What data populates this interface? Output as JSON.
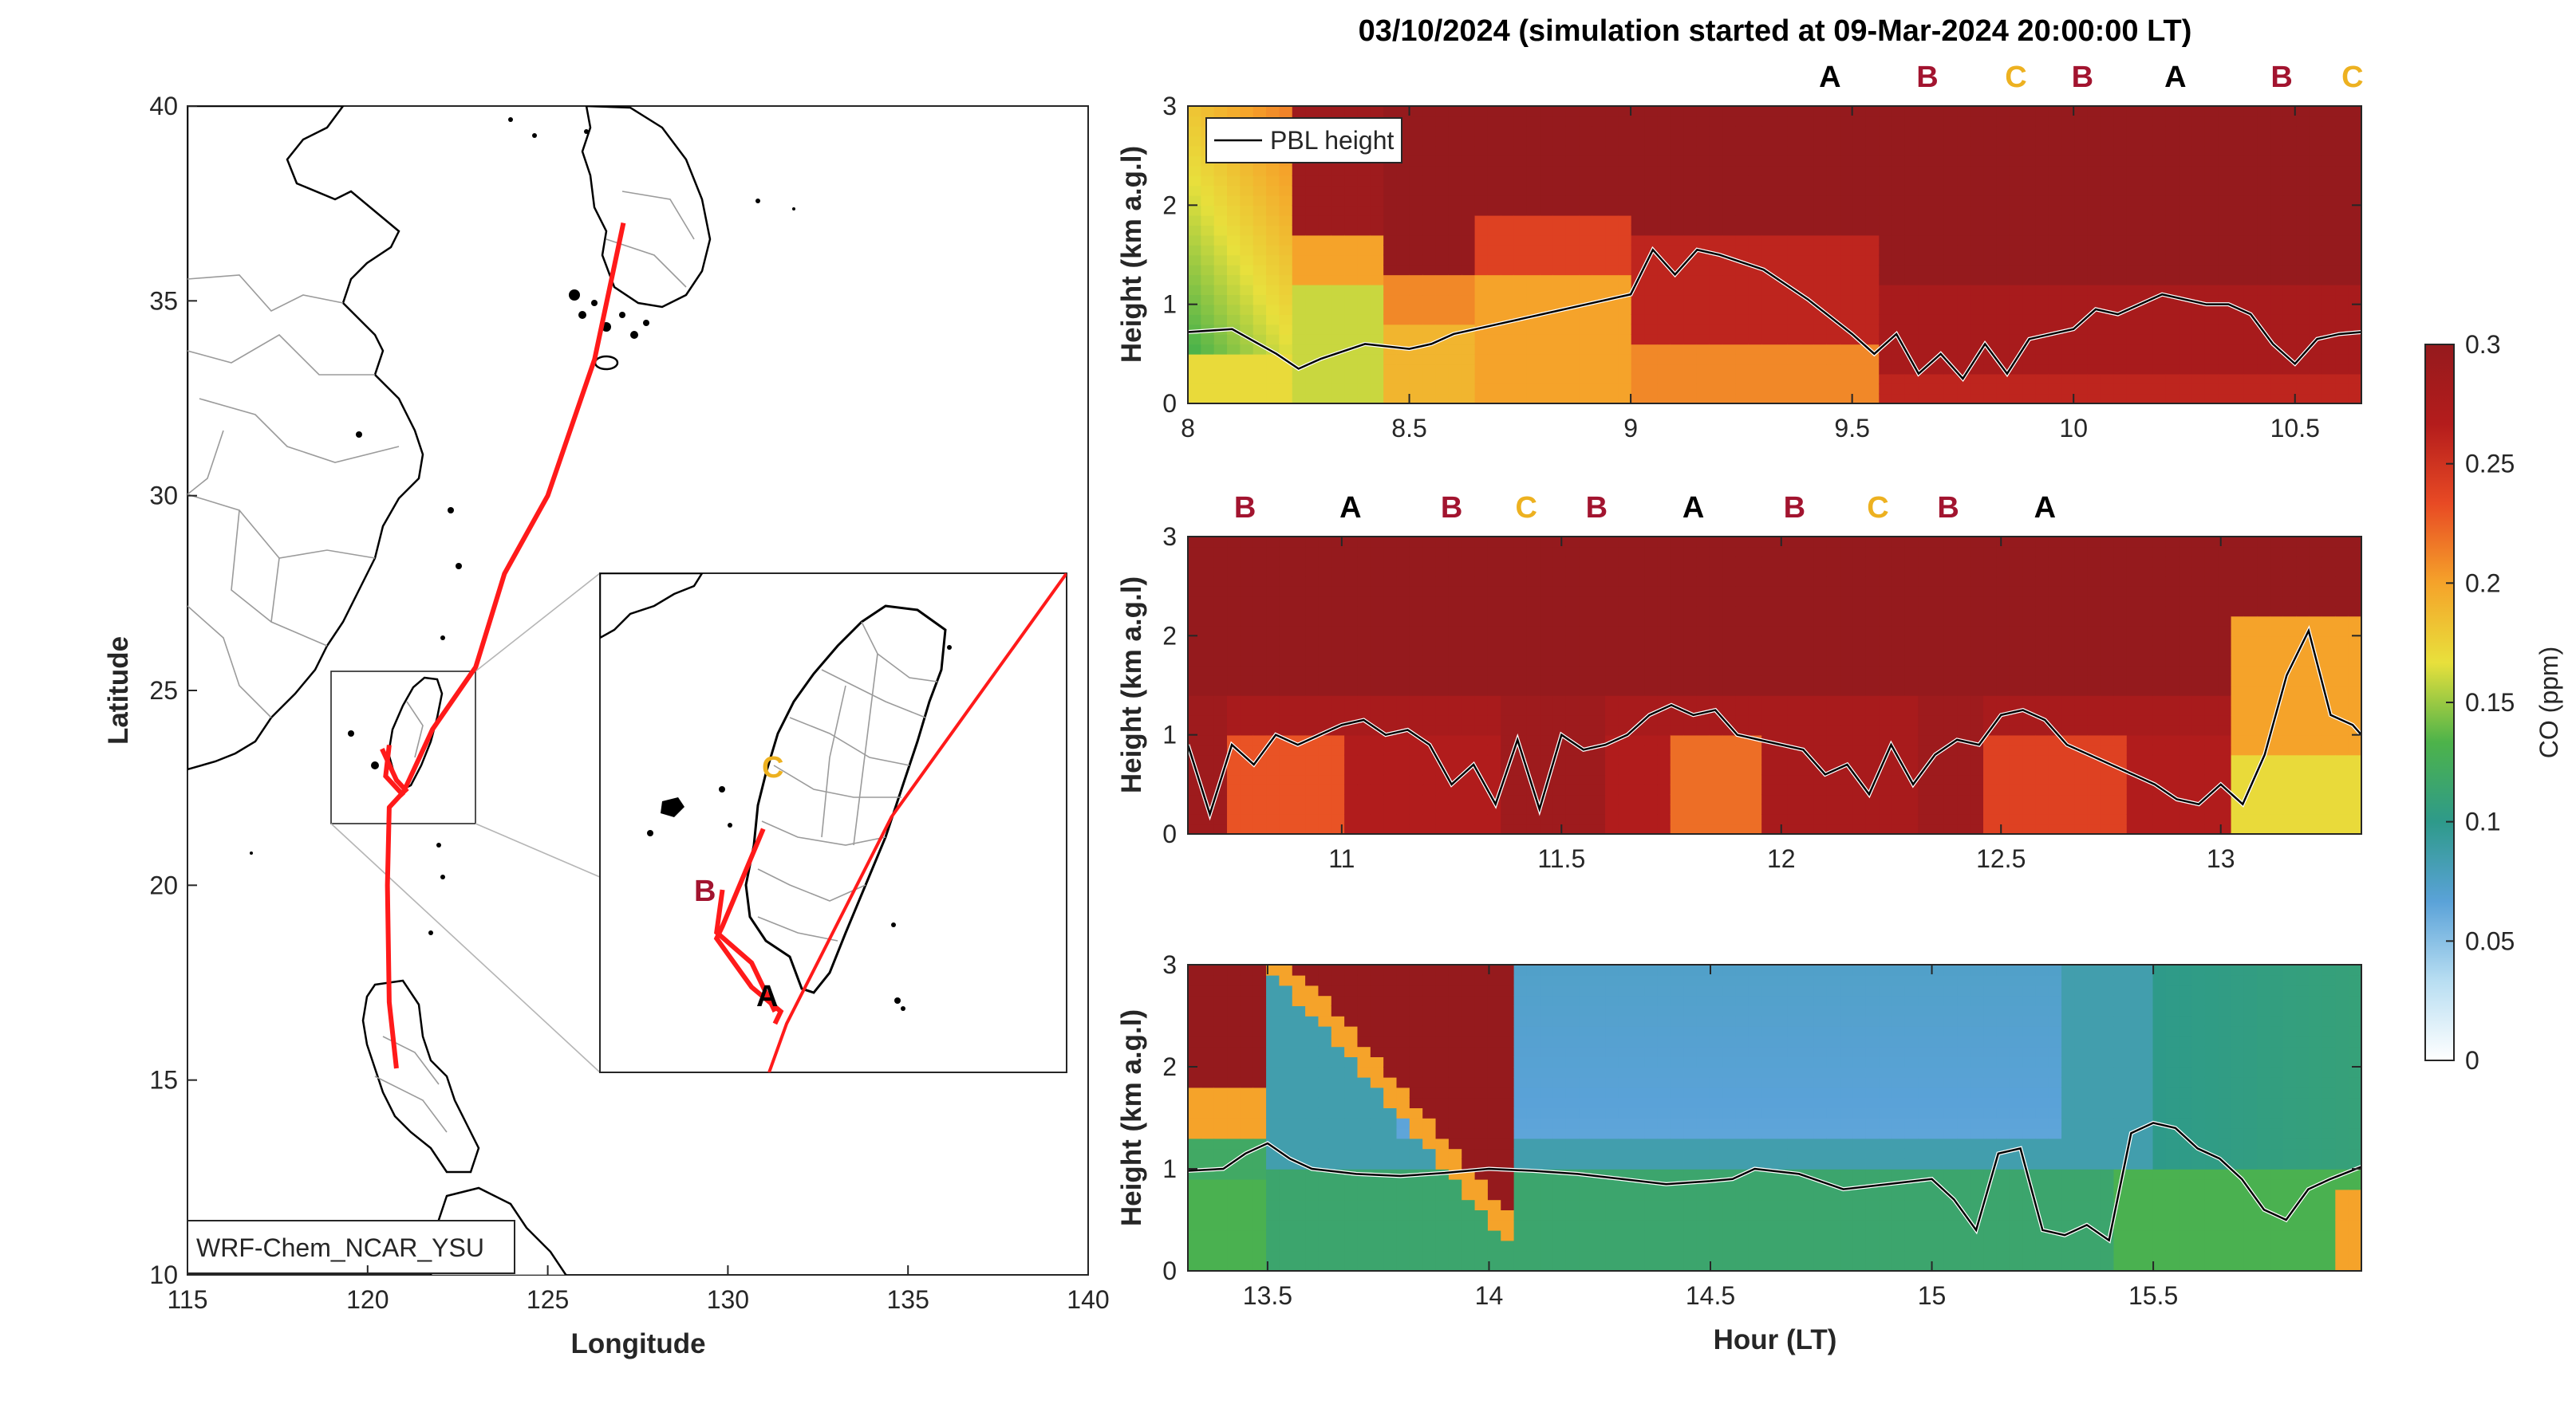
{
  "figure": {
    "title": "03/10/2024 (simulation started at 09-Mar-2024 20:00:00 LT)",
    "shared_xlabel": "Hour (LT)"
  },
  "colors": {
    "route": "#ff1a1a",
    "marker_A": "#000000",
    "marker_B": "#a2142f",
    "marker_C": "#edb120",
    "pbl_line": "#000000"
  },
  "map": {
    "model_label": "WRF-Chem_NCAR_YSU",
    "xlabel": "Longitude",
    "ylabel": "Latitude",
    "xlim": [
      115,
      140
    ],
    "ylim": [
      10,
      40
    ],
    "xticks": [
      115,
      120,
      125,
      130,
      135,
      140
    ],
    "yticks": [
      10,
      15,
      20,
      25,
      30,
      35,
      40
    ],
    "inset_box_lon": [
      119.3,
      123.3
    ],
    "inset_box_lat": [
      21.5,
      25.6
    ],
    "route_lon_lat": [
      [
        127.1,
        37.0
      ],
      [
        126.3,
        33.5
      ],
      [
        125.0,
        30.0
      ],
      [
        123.8,
        28.0
      ],
      [
        123.0,
        25.6
      ],
      [
        121.8,
        24.0
      ],
      [
        121.0,
        22.4
      ],
      [
        120.6,
        22.0
      ],
      [
        120.55,
        20.0
      ],
      [
        120.6,
        17.0
      ],
      [
        120.8,
        15.3
      ]
    ],
    "inset_letters": [
      {
        "text": "C",
        "color": "marker_C"
      },
      {
        "text": "B",
        "color": "marker_B"
      },
      {
        "text": "A",
        "color": "marker_A"
      }
    ]
  },
  "colorbar": {
    "label": "CO (ppm)",
    "range": [
      0,
      0.3
    ],
    "ticks": [
      "0",
      "0.05",
      "0.1",
      "0.15",
      "0.2",
      "0.25",
      "0.3"
    ],
    "colors": [
      "#ffffff",
      "#b8def2",
      "#5aa2d8",
      "#2e9a8a",
      "#4db34a",
      "#e8e03c",
      "#f5a32a",
      "#e84a24",
      "#b41c1c",
      "#951a1d"
    ]
  },
  "chart_data": [
    {
      "type": "heatmap",
      "xlabel": "",
      "ylabel": "Height (km a.g.l)",
      "xlim": [
        8,
        10.65
      ],
      "ylim": [
        0,
        3
      ],
      "xticks": [
        "8",
        "8.5",
        "9",
        "9.5",
        "10",
        "10.5"
      ],
      "yticks": [
        "0",
        "1",
        "2",
        "3"
      ],
      "legend": {
        "entry": "PBL height",
        "position": "top-left"
      },
      "markers": [
        {
          "label": "A",
          "x": 9.45
        },
        {
          "label": "B",
          "x": 9.67
        },
        {
          "label": "C",
          "x": 9.87
        },
        {
          "label": "B",
          "x": 10.02
        },
        {
          "label": "A",
          "x": 10.23
        },
        {
          "label": "B",
          "x": 10.47
        },
        {
          "label": "C",
          "x": 10.63
        }
      ],
      "pbl_height": {
        "x": [
          8.0,
          8.1,
          8.2,
          8.25,
          8.3,
          8.4,
          8.5,
          8.55,
          8.6,
          8.7,
          8.8,
          8.9,
          9.0,
          9.05,
          9.1,
          9.15,
          9.2,
          9.3,
          9.4,
          9.5,
          9.55,
          9.6,
          9.65,
          9.7,
          9.75,
          9.8,
          9.85,
          9.9,
          9.95,
          10.0,
          10.05,
          10.1,
          10.2,
          10.25,
          10.3,
          10.35,
          10.4,
          10.45,
          10.5,
          10.55,
          10.6,
          10.65
        ],
        "y": [
          0.72,
          0.75,
          0.5,
          0.35,
          0.45,
          0.6,
          0.55,
          0.6,
          0.7,
          0.8,
          0.9,
          1.0,
          1.1,
          1.55,
          1.3,
          1.55,
          1.5,
          1.35,
          1.05,
          0.7,
          0.5,
          0.7,
          0.3,
          0.5,
          0.25,
          0.6,
          0.3,
          0.65,
          0.7,
          0.75,
          0.95,
          0.9,
          1.1,
          1.05,
          1.0,
          1.0,
          0.9,
          0.6,
          0.4,
          0.65,
          0.7,
          0.72
        ]
      }
    },
    {
      "type": "heatmap",
      "xlabel": "",
      "ylabel": "Height (km a.g.l)",
      "xlim": [
        10.65,
        13.32
      ],
      "ylim": [
        0,
        3
      ],
      "xticks": [
        "11",
        "11.5",
        "12",
        "12.5",
        "13"
      ],
      "yticks": [
        "0",
        "1",
        "2",
        "3"
      ],
      "markers": [
        {
          "label": "B",
          "x": 10.78
        },
        {
          "label": "A",
          "x": 11.02
        },
        {
          "label": "B",
          "x": 11.25
        },
        {
          "label": "C",
          "x": 11.42
        },
        {
          "label": "B",
          "x": 11.58
        },
        {
          "label": "A",
          "x": 11.8
        },
        {
          "label": "B",
          "x": 12.03
        },
        {
          "label": "C",
          "x": 12.22
        },
        {
          "label": "B",
          "x": 12.38
        },
        {
          "label": "A",
          "x": 12.6
        }
      ],
      "pbl_height": {
        "x": [
          10.65,
          10.7,
          10.75,
          10.8,
          10.85,
          10.9,
          11.0,
          11.05,
          11.1,
          11.15,
          11.2,
          11.25,
          11.3,
          11.35,
          11.4,
          11.45,
          11.5,
          11.55,
          11.6,
          11.65,
          11.7,
          11.75,
          11.8,
          11.85,
          11.9,
          11.95,
          12.0,
          12.05,
          12.1,
          12.15,
          12.2,
          12.25,
          12.3,
          12.35,
          12.4,
          12.45,
          12.5,
          12.55,
          12.6,
          12.65,
          12.7,
          12.75,
          12.8,
          12.85,
          12.9,
          12.95,
          13.0,
          13.05,
          13.1,
          13.15,
          13.2,
          13.25,
          13.3,
          13.32
        ],
        "y": [
          0.9,
          0.2,
          0.9,
          0.7,
          1.0,
          0.9,
          1.1,
          1.15,
          1.0,
          1.05,
          0.9,
          0.5,
          0.7,
          0.3,
          0.95,
          0.25,
          1.0,
          0.85,
          0.9,
          1.0,
          1.2,
          1.3,
          1.2,
          1.25,
          1.0,
          0.95,
          0.9,
          0.85,
          0.6,
          0.7,
          0.4,
          0.9,
          0.5,
          0.8,
          0.95,
          0.9,
          1.2,
          1.25,
          1.15,
          0.9,
          0.8,
          0.7,
          0.6,
          0.5,
          0.35,
          0.3,
          0.5,
          0.3,
          0.8,
          1.6,
          2.05,
          1.2,
          1.1,
          1.0
        ]
      }
    },
    {
      "type": "heatmap",
      "xlabel": "Hour (LT)",
      "ylabel": "Height (km a.g.l)",
      "xlim": [
        13.32,
        15.97
      ],
      "ylim": [
        0,
        3
      ],
      "xticks": [
        "13.5",
        "14",
        "14.5",
        "15",
        "15.5"
      ],
      "yticks": [
        "0",
        "1",
        "2",
        "3"
      ],
      "pbl_height": {
        "x": [
          13.32,
          13.4,
          13.45,
          13.5,
          13.55,
          13.6,
          13.7,
          13.8,
          13.9,
          14.0,
          14.1,
          14.2,
          14.3,
          14.4,
          14.5,
          14.55,
          14.6,
          14.7,
          14.8,
          14.9,
          15.0,
          15.05,
          15.1,
          15.15,
          15.2,
          15.25,
          15.3,
          15.35,
          15.4,
          15.45,
          15.5,
          15.55,
          15.6,
          15.65,
          15.7,
          15.75,
          15.8,
          15.85,
          15.9,
          15.97
        ],
        "y": [
          0.98,
          1.0,
          1.15,
          1.25,
          1.1,
          1.0,
          0.95,
          0.93,
          0.96,
          1.0,
          0.98,
          0.95,
          0.9,
          0.85,
          0.88,
          0.9,
          1.0,
          0.95,
          0.8,
          0.85,
          0.9,
          0.7,
          0.4,
          1.15,
          1.2,
          0.4,
          0.35,
          0.45,
          0.3,
          1.35,
          1.45,
          1.4,
          1.2,
          1.1,
          0.9,
          0.6,
          0.5,
          0.8,
          0.9,
          1.02
        ]
      }
    }
  ]
}
